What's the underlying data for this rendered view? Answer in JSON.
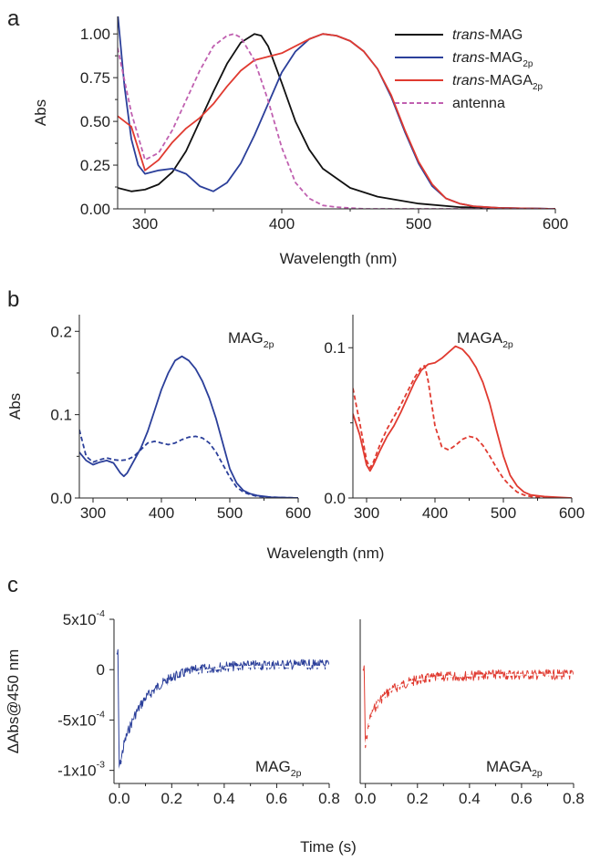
{
  "chart_data": [
    {
      "panel": "a",
      "type": "line",
      "xlabel": "Wavelength (nm)",
      "ylabel": "Abs",
      "xlim": [
        280,
        600
      ],
      "ylim": [
        0,
        1.1
      ],
      "xticks": [
        "300",
        "400",
        "500",
        "600"
      ],
      "yticks": [
        "0.00",
        "0.25",
        "0.50",
        "0.75",
        "1.00"
      ],
      "legend_position": "top-right",
      "series": [
        {
          "name": "trans-MAG",
          "color": "#111111",
          "dash": false,
          "x": [
            280,
            290,
            300,
            310,
            320,
            330,
            340,
            350,
            360,
            370,
            380,
            385,
            390,
            400,
            410,
            420,
            430,
            450,
            470,
            500,
            530,
            560,
            600
          ],
          "y": [
            0.12,
            0.1,
            0.11,
            0.14,
            0.21,
            0.33,
            0.5,
            0.67,
            0.83,
            0.95,
            1.0,
            0.99,
            0.93,
            0.72,
            0.5,
            0.34,
            0.23,
            0.12,
            0.07,
            0.03,
            0.01,
            0.005,
            0.0
          ]
        },
        {
          "name": "trans-MAG2p",
          "color": "#2b3f9a",
          "dash": false,
          "x": [
            280,
            285,
            290,
            295,
            300,
            310,
            320,
            330,
            340,
            350,
            360,
            370,
            380,
            390,
            400,
            410,
            420,
            430,
            440,
            450,
            460,
            470,
            480,
            490,
            500,
            510,
            520,
            530,
            540,
            560,
            600
          ],
          "y": [
            1.12,
            0.7,
            0.4,
            0.25,
            0.2,
            0.22,
            0.23,
            0.2,
            0.13,
            0.1,
            0.15,
            0.26,
            0.42,
            0.6,
            0.78,
            0.9,
            0.97,
            1.0,
            0.99,
            0.96,
            0.9,
            0.8,
            0.64,
            0.44,
            0.26,
            0.13,
            0.06,
            0.03,
            0.015,
            0.005,
            0.0
          ]
        },
        {
          "name": "trans-MAGA2p",
          "color": "#e03a30",
          "dash": false,
          "x": [
            280,
            290,
            300,
            310,
            320,
            330,
            340,
            350,
            360,
            370,
            380,
            390,
            400,
            410,
            420,
            430,
            440,
            450,
            460,
            470,
            480,
            490,
            500,
            510,
            520,
            530,
            540,
            560,
            600
          ],
          "y": [
            0.53,
            0.47,
            0.22,
            0.28,
            0.38,
            0.46,
            0.52,
            0.6,
            0.7,
            0.79,
            0.85,
            0.87,
            0.89,
            0.93,
            0.97,
            1.0,
            0.99,
            0.96,
            0.9,
            0.8,
            0.65,
            0.45,
            0.27,
            0.14,
            0.06,
            0.03,
            0.015,
            0.005,
            0.0
          ]
        },
        {
          "name": "antenna",
          "color": "#c060b0",
          "dash": true,
          "x": [
            280,
            290,
            300,
            310,
            320,
            330,
            340,
            350,
            360,
            365,
            370,
            380,
            390,
            400,
            410,
            420,
            430,
            440,
            460,
            500,
            600
          ],
          "y": [
            0.92,
            0.55,
            0.28,
            0.32,
            0.45,
            0.62,
            0.79,
            0.93,
            0.99,
            1.0,
            0.98,
            0.85,
            0.62,
            0.35,
            0.15,
            0.06,
            0.02,
            0.01,
            0.0,
            0.0,
            0.0
          ]
        }
      ]
    },
    {
      "panel": "b",
      "type": "line",
      "annotation": "MAG2p",
      "xlabel": "Wavelength (nm)",
      "ylabel": "Abs",
      "xlim": [
        280,
        600
      ],
      "ylim": [
        0,
        0.22
      ],
      "xticks": [
        "300",
        "400",
        "500",
        "600"
      ],
      "yticks": [
        "0.0",
        "0.1",
        "0.2"
      ],
      "series": [
        {
          "color": "#2b3f9a",
          "dash": false,
          "x": [
            280,
            290,
            300,
            310,
            320,
            330,
            340,
            345,
            350,
            360,
            370,
            380,
            390,
            400,
            410,
            420,
            430,
            440,
            450,
            460,
            470,
            480,
            490,
            500,
            510,
            520,
            530,
            540,
            560,
            600
          ],
          "y": [
            0.055,
            0.045,
            0.04,
            0.043,
            0.045,
            0.042,
            0.03,
            0.026,
            0.03,
            0.045,
            0.06,
            0.08,
            0.105,
            0.13,
            0.15,
            0.165,
            0.17,
            0.165,
            0.155,
            0.14,
            0.12,
            0.095,
            0.065,
            0.035,
            0.018,
            0.009,
            0.005,
            0.003,
            0.001,
            0.0
          ]
        },
        {
          "color": "#2b3f9a",
          "dash": true,
          "x": [
            280,
            290,
            300,
            310,
            320,
            330,
            340,
            350,
            360,
            370,
            380,
            390,
            400,
            410,
            420,
            430,
            440,
            450,
            460,
            470,
            480,
            490,
            500,
            510,
            520,
            530,
            540,
            560,
            600
          ],
          "y": [
            0.082,
            0.05,
            0.043,
            0.046,
            0.048,
            0.046,
            0.045,
            0.046,
            0.05,
            0.058,
            0.066,
            0.068,
            0.066,
            0.064,
            0.066,
            0.07,
            0.073,
            0.074,
            0.072,
            0.066,
            0.055,
            0.04,
            0.025,
            0.013,
            0.007,
            0.004,
            0.002,
            0.001,
            0.0
          ]
        }
      ]
    },
    {
      "panel": "b",
      "type": "line",
      "annotation": "MAGA2p",
      "xlabel": "Wavelength (nm)",
      "xlim": [
        280,
        600
      ],
      "ylim": [
        0,
        0.122
      ],
      "xticks": [
        "300",
        "400",
        "500",
        "600"
      ],
      "yticks": [
        "0.0",
        "0.1"
      ],
      "series": [
        {
          "color": "#e03a30",
          "dash": false,
          "x": [
            280,
            290,
            300,
            305,
            310,
            320,
            330,
            340,
            350,
            360,
            370,
            380,
            390,
            400,
            410,
            420,
            430,
            440,
            450,
            460,
            470,
            480,
            490,
            500,
            510,
            520,
            530,
            540,
            560,
            600
          ],
          "y": [
            0.056,
            0.042,
            0.022,
            0.018,
            0.022,
            0.032,
            0.041,
            0.048,
            0.057,
            0.067,
            0.077,
            0.085,
            0.089,
            0.09,
            0.093,
            0.097,
            0.101,
            0.099,
            0.094,
            0.087,
            0.077,
            0.063,
            0.045,
            0.028,
            0.015,
            0.008,
            0.004,
            0.002,
            0.001,
            0.0
          ]
        },
        {
          "color": "#e03a30",
          "dash": true,
          "x": [
            280,
            290,
            300,
            305,
            310,
            320,
            330,
            340,
            350,
            360,
            370,
            380,
            385,
            390,
            400,
            410,
            420,
            430,
            440,
            450,
            460,
            470,
            480,
            490,
            500,
            510,
            520,
            530,
            540,
            560,
            600
          ],
          "y": [
            0.073,
            0.05,
            0.025,
            0.02,
            0.024,
            0.036,
            0.046,
            0.054,
            0.062,
            0.071,
            0.08,
            0.087,
            0.088,
            0.078,
            0.048,
            0.034,
            0.032,
            0.035,
            0.039,
            0.041,
            0.04,
            0.035,
            0.028,
            0.02,
            0.013,
            0.008,
            0.004,
            0.002,
            0.001,
            0.0,
            0.0
          ]
        }
      ]
    },
    {
      "panel": "c",
      "type": "line",
      "annotation": "MAG2p",
      "xlabel": "Time (s)",
      "ylabel": "ΔAbs@450 nm",
      "xlim": [
        -0.02,
        0.8
      ],
      "ylim": [
        -0.00113,
        0.0005
      ],
      "xticks": [
        "0.0",
        "0.2",
        "0.4",
        "0.6",
        "0.8"
      ],
      "yticks": [
        {
          "mant": "5x10",
          "exp": "-4",
          "value": 0.0005
        },
        {
          "mant": "0",
          "exp": "",
          "value": 0
        },
        {
          "mant": "-5x10",
          "exp": "-4",
          "value": -0.0005
        },
        {
          "mant": "-1x10",
          "exp": "-3",
          "value": -0.001
        }
      ],
      "series": [
        {
          "color": "#2b3f9a",
          "noisy": true,
          "x": [
            -0.01,
            -0.005,
            0.0,
            0.01,
            0.02,
            0.04,
            0.06,
            0.08,
            0.1,
            0.15,
            0.2,
            0.25,
            0.3,
            0.4,
            0.5,
            0.6,
            0.7,
            0.8
          ],
          "y": [
            0.00016,
            0.00016,
            -0.001,
            -0.00085,
            -0.00072,
            -0.00057,
            -0.00045,
            -0.00036,
            -0.00028,
            -0.00016,
            -8e-05,
            -3e-05,
            0.0,
            3e-05,
            4e-05,
            5e-05,
            5e-05,
            5e-05
          ]
        },
        {
          "color": "#ffffff",
          "dash": true,
          "fit": true,
          "x": [
            0.0,
            0.02,
            0.05,
            0.1,
            0.15,
            0.2,
            0.3,
            0.4,
            0.5,
            0.6,
            0.8
          ],
          "y": [
            -0.001,
            -0.00082,
            -0.00062,
            -0.00038,
            -0.00022,
            -0.00012,
            -2e-05,
            2e-05,
            3e-05,
            3e-05,
            3e-05
          ]
        }
      ]
    },
    {
      "panel": "c",
      "type": "line",
      "annotation": "MAGA2p",
      "xlabel": "Time (s)",
      "xlim": [
        -0.02,
        0.8
      ],
      "ylim": [
        -0.00113,
        0.0005
      ],
      "xticks": [
        "0.0",
        "0.2",
        "0.4",
        "0.6",
        "0.8"
      ],
      "series": [
        {
          "color": "#e03a30",
          "noisy": true,
          "x": [
            -0.01,
            -0.005,
            0.0,
            0.01,
            0.02,
            0.04,
            0.06,
            0.08,
            0.1,
            0.15,
            0.2,
            0.3,
            0.4,
            0.5,
            0.6,
            0.7,
            0.8
          ],
          "y": [
            0.0,
            0.0,
            -0.00078,
            -0.00058,
            -0.00047,
            -0.00036,
            -0.00029,
            -0.00024,
            -0.0002,
            -0.00014,
            -0.0001,
            -7e-05,
            -6e-05,
            -5e-05,
            -5e-05,
            -5e-05,
            -5e-05
          ]
        },
        {
          "color": "#ffffff",
          "dash": true,
          "fit": true,
          "x": [
            0.0,
            0.02,
            0.05,
            0.1,
            0.15,
            0.2,
            0.3,
            0.4,
            0.6,
            0.8
          ],
          "y": [
            -0.00075,
            -0.00048,
            -0.00032,
            -0.0002,
            -0.00014,
            -0.0001,
            -7e-05,
            -6e-05,
            -5e-05,
            -5e-05
          ]
        }
      ]
    }
  ],
  "labels": {
    "panel_a": "a",
    "panel_b": "b",
    "panel_c": "c",
    "legend_a": [
      {
        "italic": "trans",
        "rest": "-MAG",
        "sub": ""
      },
      {
        "italic": "trans",
        "rest": "-MAG",
        "sub": "2p"
      },
      {
        "italic": "trans",
        "rest": "-MAGA",
        "sub": "2p"
      },
      {
        "italic": "",
        "rest": "antenna",
        "sub": ""
      }
    ],
    "b_left_annot": {
      "main": "MAG",
      "sub": "2p"
    },
    "b_right_annot": {
      "main": "MAGA",
      "sub": "2p"
    },
    "c_left_annot": {
      "main": "MAG",
      "sub": "2p"
    },
    "c_right_annot": {
      "main": "MAGA",
      "sub": "2p"
    }
  }
}
